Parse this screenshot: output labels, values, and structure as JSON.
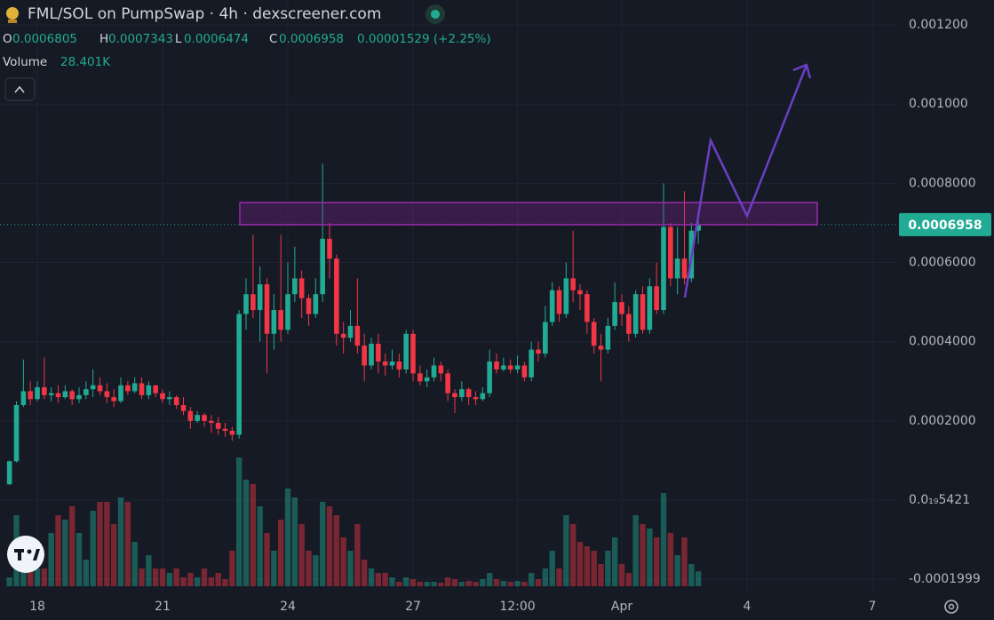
{
  "chart_data": {
    "type": "candlestick",
    "title": "FML/SOL on PumpSwap · 4h · dexscreener.com",
    "ohlc_labels": [
      "O",
      "H",
      "L",
      "C"
    ],
    "change_label": "0.00001529 (+2.25%)",
    "volume_title": "Volume",
    "volume_label": "28.401K",
    "up_color": "#22ab94",
    "down_color": "#f23645",
    "grid": true,
    "xlim": [
      17.106,
      38.596
    ],
    "ylim": [
      -0.00024,
      0.001263
    ],
    "volume_ylim": [
      0,
      1122000
    ],
    "xticks": [
      18,
      21,
      24,
      27,
      {
        "value": 29.5,
        "label": "12:00"
      },
      {
        "value": 32,
        "label": "Apr"
      },
      {
        "value": 35,
        "label": "4"
      },
      {
        "value": 38,
        "label": "7"
      }
    ],
    "yticks": [
      {
        "value": 0.0012,
        "label": "0.001200"
      },
      {
        "value": 0.001,
        "label": "0.001000"
      },
      {
        "value": 0.0008,
        "label": "0.0008000"
      },
      {
        "value": 0.0006,
        "label": "0.0006000"
      },
      {
        "value": 0.0004,
        "label": "0.0004000"
      },
      {
        "value": 0.0002,
        "label": "0.0002000"
      },
      {
        "value": 5.421e-20,
        "label": "0.0₁₉5421"
      },
      -0.0001999
    ],
    "x": [
      17.333,
      17.5,
      17.667,
      17.833,
      18,
      18.167,
      18.333,
      18.5,
      18.667,
      18.833,
      19,
      19.167,
      19.333,
      19.5,
      19.667,
      19.833,
      20,
      20.167,
      20.333,
      20.5,
      20.667,
      20.833,
      21,
      21.167,
      21.333,
      21.5,
      21.667,
      21.833,
      22,
      22.167,
      22.333,
      22.5,
      22.667,
      22.833,
      23,
      23.167,
      23.333,
      23.5,
      23.667,
      23.833,
      24,
      24.167,
      24.333,
      24.5,
      24.667,
      24.833,
      25,
      25.167,
      25.333,
      25.5,
      25.667,
      25.833,
      26,
      26.167,
      26.333,
      26.5,
      26.667,
      26.833,
      27,
      27.167,
      27.333,
      27.5,
      27.667,
      27.833,
      28,
      28.167,
      28.333,
      28.5,
      28.667,
      28.833,
      29,
      29.167,
      29.333,
      29.5,
      29.667,
      29.833,
      30,
      30.167,
      30.333,
      30.5,
      30.667,
      30.833,
      31,
      31.167,
      31.333,
      31.5,
      31.667,
      31.833,
      32,
      32.167,
      32.333,
      32.5,
      32.667,
      32.833,
      33,
      33.167,
      33.333,
      33.5,
      33.667,
      33.833
    ],
    "open": [
      4e-05,
      9.8e-05,
      0.00024,
      0.000275,
      0.000255,
      0.000285,
      0.000265,
      0.00027,
      0.00026,
      0.000275,
      0.000255,
      0.000265,
      0.00028,
      0.00029,
      0.000275,
      0.00026,
      0.00025,
      0.00029,
      0.000275,
      0.000295,
      0.000265,
      0.00029,
      0.00027,
      0.000255,
      0.00026,
      0.00024,
      0.000225,
      0.0002,
      0.000215,
      0.0002,
      0.000195,
      0.00018,
      0.000175,
      0.000165,
      0.00047,
      0.00052,
      0.00048,
      0.000545,
      0.00042,
      0.00048,
      0.00043,
      0.00052,
      0.00056,
      0.00051,
      0.00047,
      0.00052,
      0.00066,
      0.00061,
      0.00042,
      0.00041,
      0.00044,
      0.00039,
      0.00034,
      0.000395,
      0.00035,
      0.00034,
      0.00035,
      0.00033,
      0.00042,
      0.00032,
      0.0003,
      0.00031,
      0.00034,
      0.00032,
      0.00027,
      0.00026,
      0.00028,
      0.00026,
      0.000255,
      0.00027,
      0.00035,
      0.00033,
      0.00034,
      0.00033,
      0.00034,
      0.00031,
      0.00038,
      0.00037,
      0.00045,
      0.00053,
      0.00047,
      0.00056,
      0.00053,
      0.00052,
      0.00045,
      0.00039,
      0.00038,
      0.00044,
      0.0005,
      0.00047,
      0.00042,
      0.00052,
      0.00043,
      0.00054,
      0.00048,
      0.00069,
      0.00056,
      0.00061,
      0.00056,
      0.0006805
    ],
    "high": [
      0.0001,
      0.00025,
      0.000355,
      0.0003,
      0.0003,
      0.00036,
      0.000285,
      0.00029,
      0.00029,
      0.00028,
      0.000285,
      0.0003,
      0.00033,
      0.00031,
      0.000295,
      0.00028,
      0.00031,
      0.0003,
      0.00031,
      0.00031,
      0.0003,
      0.00029,
      0.00028,
      0.000275,
      0.000265,
      0.00026,
      0.000235,
      0.000225,
      0.00022,
      0.000215,
      0.00021,
      0.000195,
      0.000185,
      0.00048,
      0.00056,
      0.00067,
      0.00059,
      0.00056,
      0.00052,
      0.00067,
      0.0006,
      0.00064,
      0.00058,
      0.00052,
      0.00056,
      0.00085,
      0.0007,
      0.00062,
      0.00045,
      0.00048,
      0.00056,
      0.00042,
      0.00041,
      0.00042,
      0.00037,
      0.00038,
      0.00037,
      0.00043,
      0.00043,
      0.00034,
      0.00033,
      0.00036,
      0.00035,
      0.00033,
      0.00028,
      0.0003,
      0.000285,
      0.000275,
      0.000285,
      0.00038,
      0.00037,
      0.00036,
      0.000355,
      0.000365,
      0.00035,
      0.0004,
      0.0004,
      0.00049,
      0.00055,
      0.00054,
      0.0006,
      0.00068,
      0.000545,
      0.00053,
      0.00046,
      0.00042,
      0.00046,
      0.00055,
      0.00052,
      0.00049,
      0.00053,
      0.00054,
      0.00056,
      0.0006,
      0.0008,
      0.0007,
      0.00069,
      0.00078,
      0.0007,
      0.0007343
    ],
    "low": [
      3.8e-05,
      9.5e-05,
      0.000235,
      0.00024,
      0.00025,
      0.000255,
      0.00025,
      0.000245,
      0.000255,
      0.00024,
      0.000245,
      0.000255,
      0.00026,
      0.000265,
      0.000245,
      0.000235,
      0.000245,
      0.000265,
      0.00027,
      0.000255,
      0.000255,
      0.00026,
      0.000245,
      0.00024,
      0.00023,
      0.000215,
      0.00018,
      0.000195,
      0.000185,
      0.00017,
      0.000165,
      0.00016,
      0.00015,
      0.000155,
      0.00043,
      0.00046,
      0.0004,
      0.00032,
      0.00038,
      0.0004,
      0.00042,
      0.0005,
      0.00046,
      0.00044,
      0.00046,
      0.0005,
      0.00056,
      0.00039,
      0.00037,
      0.0004,
      0.00037,
      0.0003,
      0.00033,
      0.00032,
      0.000315,
      0.00033,
      0.00031,
      0.00032,
      0.0003,
      0.00029,
      0.000285,
      0.0003,
      0.0003,
      0.00025,
      0.00022,
      0.00025,
      0.00024,
      0.00024,
      0.00025,
      0.00026,
      0.00032,
      0.000325,
      0.00032,
      0.00032,
      0.0003,
      0.0003,
      0.00035,
      0.00036,
      0.00044,
      0.00045,
      0.00046,
      0.0005,
      0.00048,
      0.00042,
      0.00037,
      0.0003,
      0.00037,
      0.00043,
      0.00044,
      0.0004,
      0.00041,
      0.00042,
      0.00042,
      0.00047,
      0.00047,
      0.00054,
      0.00052,
      0.000545,
      0.00055,
      0.0006474
    ],
    "close": [
      9.8e-05,
      0.00024,
      0.000275,
      0.000255,
      0.000285,
      0.000265,
      0.00027,
      0.00026,
      0.000275,
      0.000255,
      0.000265,
      0.00028,
      0.00029,
      0.000275,
      0.00026,
      0.00025,
      0.00029,
      0.000275,
      0.000295,
      0.000265,
      0.00029,
      0.00027,
      0.000255,
      0.00026,
      0.00024,
      0.000225,
      0.0002,
      0.000215,
      0.0002,
      0.000195,
      0.00018,
      0.000175,
      0.000165,
      0.00047,
      0.00052,
      0.00048,
      0.000545,
      0.00042,
      0.00048,
      0.00043,
      0.00052,
      0.00056,
      0.00051,
      0.00047,
      0.00052,
      0.00066,
      0.00061,
      0.00042,
      0.00041,
      0.00044,
      0.00039,
      0.00034,
      0.000395,
      0.00035,
      0.00034,
      0.00035,
      0.00033,
      0.00042,
      0.00032,
      0.0003,
      0.00031,
      0.00034,
      0.00032,
      0.00027,
      0.00026,
      0.00028,
      0.00026,
      0.000255,
      0.00027,
      0.00035,
      0.00033,
      0.00034,
      0.00033,
      0.00034,
      0.00031,
      0.00038,
      0.00037,
      0.00045,
      0.00053,
      0.00047,
      0.00056,
      0.00053,
      0.00052,
      0.00045,
      0.00039,
      0.00038,
      0.00044,
      0.0005,
      0.00047,
      0.00042,
      0.00052,
      0.00043,
      0.00054,
      0.00048,
      0.00069,
      0.00056,
      0.00061,
      0.00056,
      0.0006805,
      0.0006958
    ],
    "volume": [
      17000,
      136000,
      51000,
      85000,
      34000,
      34000,
      102000,
      136000,
      127500,
      153000,
      102000,
      51000,
      144500,
      161500,
      161500,
      119000,
      170000,
      161500,
      85000,
      34000,
      59500,
      34000,
      34000,
      25500,
      34000,
      17000,
      25500,
      17000,
      34000,
      17000,
      25500,
      13600,
      68000,
      246500,
      204000,
      195500,
      153000,
      102000,
      68000,
      127500,
      187000,
      170000,
      119000,
      68000,
      59500,
      161500,
      153000,
      136000,
      93500,
      68000,
      119000,
      51000,
      34000,
      25500,
      25500,
      17000,
      8500,
      17000,
      13600,
      8500,
      8500,
      8500,
      6800,
      17000,
      13600,
      8500,
      10200,
      8500,
      13600,
      25500,
      13600,
      10200,
      8500,
      10200,
      8500,
      25500,
      13600,
      34000,
      68000,
      34000,
      136000,
      119000,
      85000,
      76500,
      68000,
      42500,
      68000,
      93500,
      42500,
      25500,
      136000,
      119000,
      110500,
      93500,
      178500,
      102000,
      59500,
      93500,
      42500,
      28401
    ]
  }
}
